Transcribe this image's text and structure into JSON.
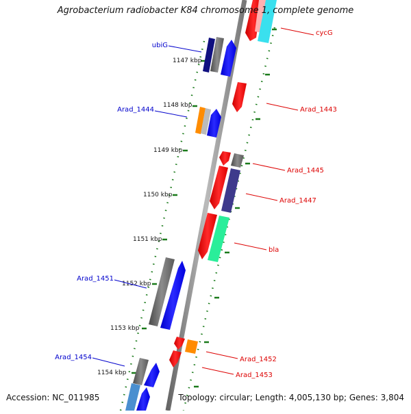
{
  "title": "Agrobacterium radiobacter K84 chromosome 1, complete genome",
  "footer": {
    "accession": "Accession: NC_011985",
    "summary": "Topology: circular; Length: 4,005,130 bp; Genes: 3,804"
  },
  "colors": {
    "backbone": "#8a8a8a",
    "tick": "#1a7a1a",
    "forward_label": "#0000cc",
    "reverse_label": "#dd0000"
  },
  "tick_labels": [
    "1147 kbp",
    "1148 kbp",
    "1149 kbp",
    "1150 kbp",
    "1151 kbp",
    "1152 kbp",
    "1153 kbp",
    "1154 kbp"
  ],
  "forward_genes": [
    {
      "name": "ubiG",
      "labeled": true
    },
    {
      "name": "Arad_1444",
      "labeled": true
    },
    {
      "name": "Arad_1451",
      "labeled": true
    },
    {
      "name": "Arad_1454",
      "labeled": true
    }
  ],
  "reverse_genes": [
    {
      "name": "cycG",
      "labeled": true
    },
    {
      "name": "Arad_1443",
      "labeled": true
    },
    {
      "name": "Arad_1445",
      "labeled": true
    },
    {
      "name": "Arad_1447",
      "labeled": true
    },
    {
      "name": "bla",
      "labeled": true
    },
    {
      "name": "Arad_1452",
      "labeled": true
    },
    {
      "name": "Arad_1453",
      "labeled": true
    }
  ]
}
